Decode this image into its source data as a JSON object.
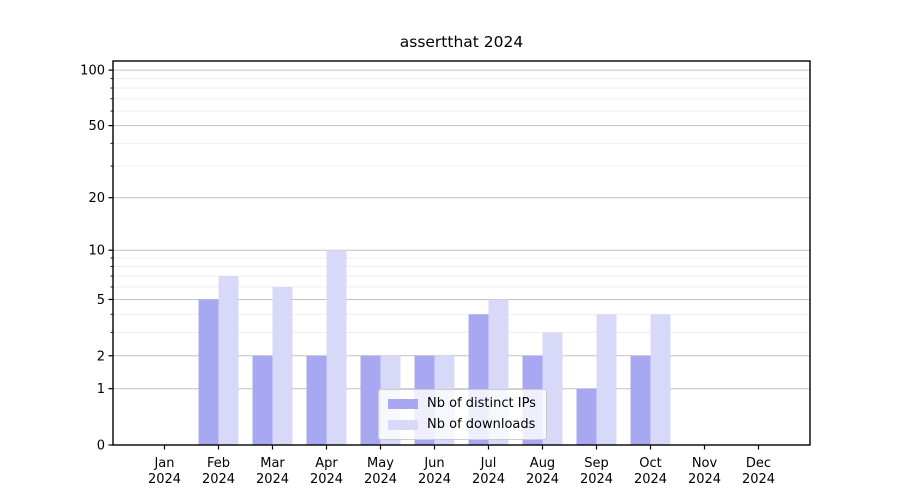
{
  "chart_data": {
    "type": "bar",
    "title": "assertthat 2024",
    "x_axis": {
      "months": [
        "Jan",
        "Feb",
        "Mar",
        "Apr",
        "May",
        "Jun",
        "Jul",
        "Aug",
        "Sep",
        "Oct",
        "Nov",
        "Dec"
      ],
      "year_line": "2024"
    },
    "categories": [
      "Jan 2024",
      "Feb 2024",
      "Mar 2024",
      "Apr 2024",
      "May 2024",
      "Jun 2024",
      "Jul 2024",
      "Aug 2024",
      "Sep 2024",
      "Oct 2024",
      "Nov 2024",
      "Dec 2024"
    ],
    "series": [
      {
        "name": "Nb of distinct IPs",
        "color": "#a8a8f2",
        "values": [
          0,
          5,
          2,
          2,
          2,
          2,
          4,
          2,
          1,
          2,
          0,
          0
        ]
      },
      {
        "name": "Nb of downloads",
        "color": "#d8d8f8",
        "values": [
          0,
          7,
          6,
          10,
          2,
          2,
          5,
          3,
          4,
          4,
          0,
          0
        ]
      }
    ],
    "y_axis": {
      "scale": "log1p",
      "tick_labels": [
        "0",
        "1",
        "2",
        "5",
        "10",
        "20",
        "50",
        "100"
      ],
      "major_ticks": [
        0,
        1,
        2,
        5,
        10,
        20,
        50,
        100
      ],
      "minor_ticks": [
        3,
        4,
        6,
        7,
        8,
        9,
        30,
        40,
        60,
        70,
        80,
        90
      ],
      "ylim": [
        0,
        112
      ]
    },
    "legend": {
      "position": "lower center"
    },
    "style": {
      "major_grid_color": "#c2c2c2",
      "minor_grid_color": "#ededed",
      "spine_color": "#000000",
      "text_color": "#000000",
      "background": "#ffffff"
    }
  }
}
